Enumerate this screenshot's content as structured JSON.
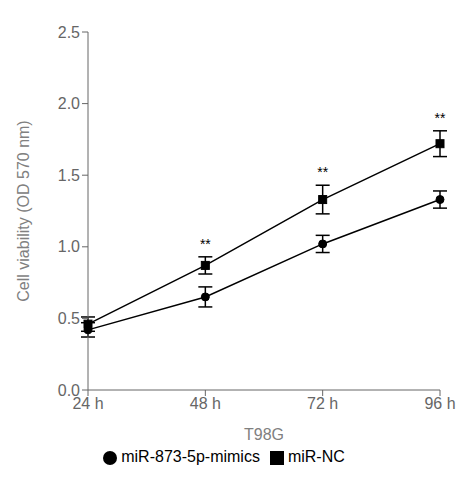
{
  "chart_data": {
    "type": "line",
    "categories": [
      "24 h",
      "48 h",
      "72 h",
      "96 h"
    ],
    "series": [
      {
        "name": "miR-873-5p-mimics",
        "color": "#000000",
        "marker": "circle",
        "values": [
          0.42,
          0.65,
          1.02,
          1.33
        ],
        "errors": [
          0.05,
          0.07,
          0.06,
          0.06
        ]
      },
      {
        "name": "miR-NC",
        "color": "#000000",
        "marker": "square",
        "values": [
          0.46,
          0.87,
          1.33,
          1.72
        ],
        "errors": [
          0.05,
          0.06,
          0.1,
          0.09
        ]
      }
    ],
    "ylabel": "Cell viability (OD 570 nm)",
    "xlabel": "T98G",
    "ylim": [
      0.0,
      2.5
    ],
    "yticks": [
      {
        "value": 0.0,
        "label": "0.0"
      },
      0.5,
      {
        "value": 1.0,
        "label": "1.0"
      },
      1.5,
      {
        "value": 2.0,
        "label": "2.0"
      },
      2.5
    ],
    "annotations": [
      {
        "x": "48 h",
        "text": "**"
      },
      {
        "x": "72 h",
        "text": "**"
      },
      {
        "x": "96 h",
        "text": "**"
      }
    ],
    "grid": false,
    "legend": "bottom"
  }
}
